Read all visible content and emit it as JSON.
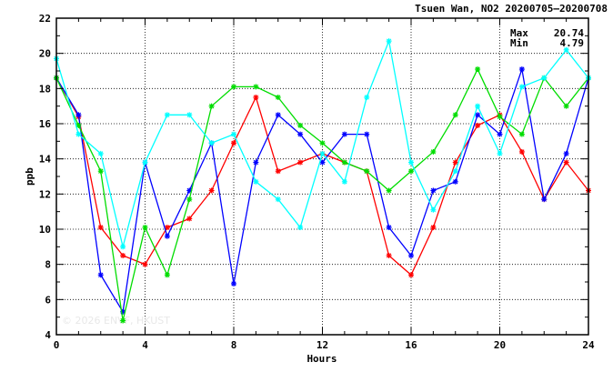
{
  "chart_data": {
    "type": "line",
    "title": "Tsuen Wan, NO2 20200705—20200708",
    "xlabel": "Hours",
    "ylabel": "ppb",
    "xlim": [
      0,
      24
    ],
    "ylim": [
      4,
      22
    ],
    "x_ticks": [
      0,
      4,
      8,
      12,
      16,
      20,
      24
    ],
    "y_ticks": [
      4,
      6,
      8,
      10,
      12,
      14,
      16,
      18,
      20,
      22
    ],
    "grid": true,
    "stats": {
      "max_label": "Max",
      "max_value": "20.74",
      "min_label": "Min",
      "min_value": "4.79"
    },
    "watermark": "© 2026 ENVF, HKUST",
    "x": [
      0,
      1,
      2,
      3,
      4,
      5,
      6,
      7,
      8,
      9,
      10,
      11,
      12,
      13,
      14,
      15,
      16,
      17,
      18,
      19,
      20,
      21,
      22,
      23,
      24
    ],
    "series": [
      {
        "color": "#ff0000",
        "values": [
          18.6,
          16.4,
          10.1,
          8.5,
          8.0,
          10.1,
          10.6,
          12.2,
          14.9,
          17.5,
          13.3,
          13.8,
          14.3,
          13.8,
          13.3,
          8.5,
          7.4,
          10.1,
          13.8,
          15.9,
          16.5,
          14.4,
          11.7,
          13.8,
          12.2
        ]
      },
      {
        "color": "#0000ff",
        "values": [
          18.6,
          16.5,
          7.4,
          5.3,
          13.8,
          9.6,
          12.2,
          14.9,
          6.9,
          13.8,
          16.5,
          15.4,
          13.8,
          15.4,
          15.4,
          10.1,
          8.5,
          12.2,
          12.7,
          16.5,
          15.4,
          19.1,
          11.7,
          14.3,
          18.6
        ]
      },
      {
        "color": "#00dd00",
        "values": [
          18.6,
          15.9,
          13.3,
          4.8,
          10.1,
          7.4,
          11.7,
          17.0,
          18.1,
          18.1,
          17.5,
          15.9,
          14.9,
          13.8,
          13.3,
          12.2,
          13.3,
          14.4,
          16.5,
          19.1,
          16.4,
          15.4,
          18.6,
          17.0,
          18.6
        ]
      },
      {
        "color": "#00ffff",
        "values": [
          19.7,
          15.4,
          14.3,
          9.0,
          13.8,
          16.5,
          16.5,
          14.9,
          15.4,
          12.7,
          11.7,
          10.1,
          14.3,
          12.7,
          17.5,
          20.7,
          13.8,
          11.1,
          13.3,
          17.0,
          14.3,
          18.1,
          18.6,
          20.2,
          18.6
        ]
      }
    ]
  }
}
